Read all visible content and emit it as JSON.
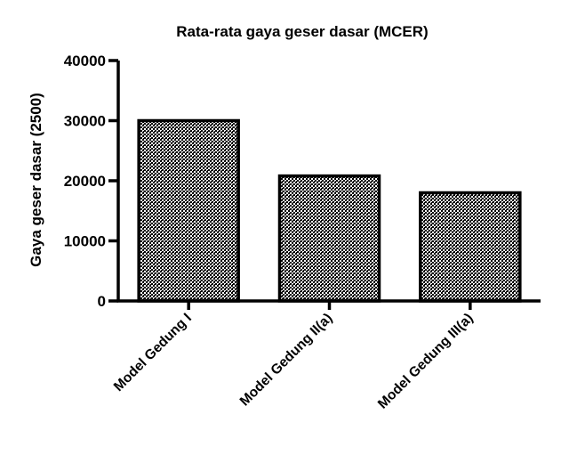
{
  "chart_data": {
    "type": "bar",
    "title": "Rata-rata gaya geser dasar (MCER)",
    "xlabel": "",
    "ylabel": "Gaya geser dasar (2500)",
    "categories": [
      "Model Gedung I",
      "Model Gedung II(a)",
      "Model Gedung III(a)"
    ],
    "values": [
      30000,
      20800,
      18000
    ],
    "ylim": [
      0,
      40000
    ],
    "yticks": [
      0,
      10000,
      20000,
      30000,
      40000
    ],
    "ytick_labels": [
      "0",
      "10000",
      "20000",
      "30000",
      "40000"
    ],
    "grid": false,
    "legend": "none",
    "bar_fill": "crosshatch pattern, black on white",
    "colors": {
      "bar_stroke": "#000000",
      "pattern": "#000000",
      "background": "#ffffff"
    }
  }
}
